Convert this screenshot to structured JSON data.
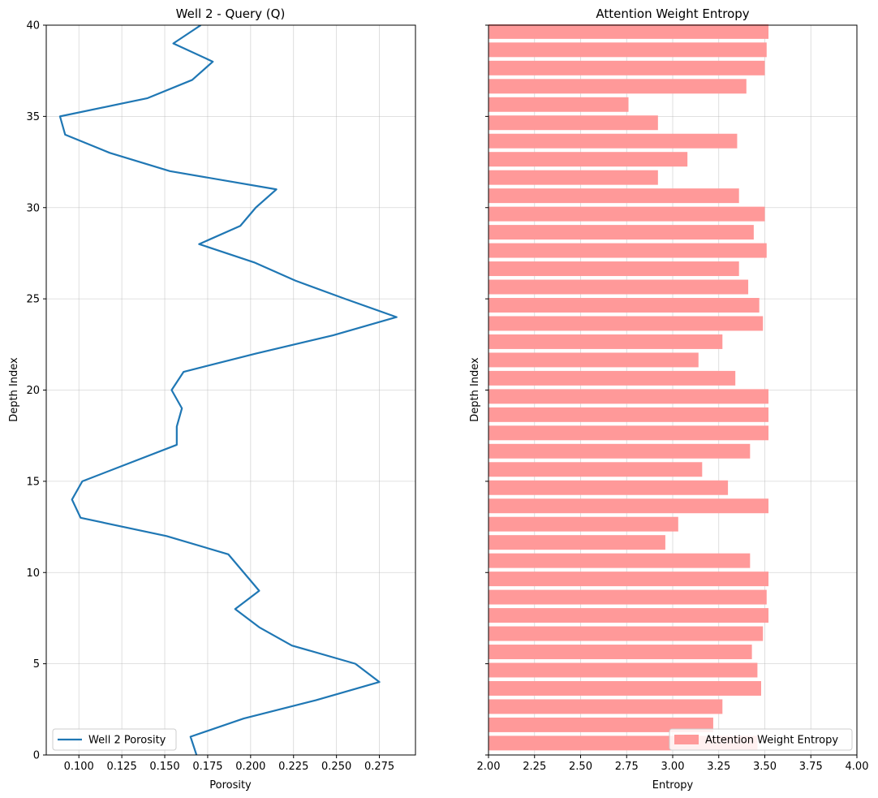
{
  "chart_data": [
    {
      "type": "line",
      "title": "Well 2 - Query (Q)",
      "xlabel": "Porosity",
      "ylabel": "Depth Index",
      "xlim": [
        0.081,
        0.296
      ],
      "ylim": [
        0,
        40
      ],
      "xticks": [
        "0.100",
        "0.125",
        "0.150",
        "0.175",
        "0.200",
        "0.225",
        "0.250",
        "0.275"
      ],
      "xtick_values": [
        0.1,
        0.125,
        0.15,
        0.175,
        0.2,
        0.225,
        0.25,
        0.275
      ],
      "yticks": [
        "0",
        "5",
        "10",
        "15",
        "20",
        "25",
        "30",
        "35",
        "40"
      ],
      "ytick_values": [
        0,
        5,
        10,
        15,
        20,
        25,
        30,
        35,
        40
      ],
      "grid": true,
      "legend": "lower left",
      "color": "#1f77b4",
      "series": [
        {
          "name": "Well 2 Porosity",
          "x": [
            0.172,
            0.165,
            0.196,
            0.238,
            0.275,
            0.261,
            0.224,
            0.205,
            0.191,
            0.205,
            0.196,
            0.187,
            0.151,
            0.101,
            0.096,
            0.102,
            0.157,
            0.157,
            0.16,
            0.154,
            0.161,
            0.203,
            0.248,
            0.285,
            0.255,
            0.226,
            0.202,
            0.17,
            0.194,
            0.203,
            0.215,
            0.153,
            0.118,
            0.092,
            0.089,
            0.14,
            0.166,
            0.178,
            0.155,
            0.171
          ],
          "y": [
            -1,
            1,
            2,
            3,
            4,
            5,
            6,
            7,
            8,
            9,
            10,
            11,
            12,
            13,
            14,
            15,
            17,
            18,
            19,
            20,
            21,
            22,
            23,
            24,
            25,
            26,
            27,
            28,
            29,
            30,
            31,
            32,
            33,
            34,
            35,
            36,
            37,
            38,
            39,
            40
          ]
        }
      ]
    },
    {
      "type": "bar",
      "orientation": "horizontal",
      "title": "Attention Weight Entropy",
      "xlabel": "Entropy",
      "ylabel": "Depth Index",
      "xlim": [
        2.0,
        4.0
      ],
      "ylim": [
        0,
        40
      ],
      "xticks": [
        "2.00",
        "2.25",
        "2.50",
        "2.75",
        "3.00",
        "3.25",
        "3.50",
        "3.75",
        "4.00"
      ],
      "xtick_values": [
        2.0,
        2.25,
        2.5,
        2.75,
        3.0,
        3.25,
        3.5,
        3.75,
        4.0
      ],
      "ytick_values": [
        0,
        5,
        10,
        15,
        20,
        25,
        30,
        35,
        40
      ],
      "grid": true,
      "legend": "lower right",
      "color": "#ff9999",
      "series": [
        {
          "name": "Attention Weight Entropy",
          "y": [
            1,
            2,
            3,
            4,
            5,
            6,
            7,
            8,
            9,
            10,
            11,
            12,
            13,
            14,
            15,
            16,
            17,
            18,
            19,
            20,
            21,
            22,
            23,
            24,
            25,
            26,
            27,
            28,
            29,
            30,
            31,
            32,
            33,
            34,
            35,
            36,
            37,
            38,
            39,
            40
          ],
          "values": [
            3.46,
            3.22,
            3.27,
            3.48,
            3.46,
            3.43,
            3.49,
            3.52,
            3.51,
            3.52,
            3.42,
            2.96,
            3.03,
            3.52,
            3.3,
            3.16,
            3.42,
            3.52,
            3.52,
            3.52,
            3.34,
            3.14,
            3.27,
            3.49,
            3.47,
            3.41,
            3.36,
            3.51,
            3.44,
            3.5,
            3.36,
            2.92,
            3.08,
            3.35,
            2.92,
            2.76,
            3.4,
            3.5,
            3.51,
            3.52
          ]
        }
      ]
    }
  ]
}
